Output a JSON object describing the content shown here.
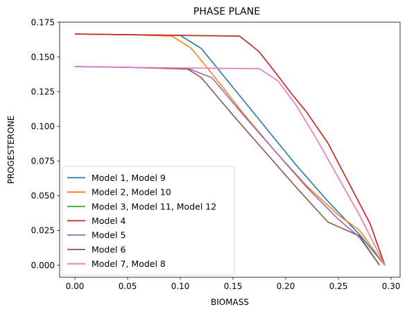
{
  "chart_data": {
    "type": "line",
    "title": "PHASE PLANE",
    "xlabel": "BIOMASS",
    "ylabel": "PROGESTERONE",
    "xlim": [
      -0.0145,
      0.3085
    ],
    "ylim": [
      -0.00875,
      0.175
    ],
    "xticks": [
      0.0,
      0.05,
      0.1,
      0.15,
      0.2,
      0.25,
      0.3
    ],
    "xtick_labels": [
      "0.00",
      "0.05",
      "0.10",
      "0.15",
      "0.20",
      "0.25",
      "0.30"
    ],
    "yticks": [
      0.0,
      0.025,
      0.05,
      0.075,
      0.1,
      0.125,
      0.15,
      0.175
    ],
    "ytick_labels": [
      "0.000",
      "0.025",
      "0.050",
      "0.075",
      "0.100",
      "0.125",
      "0.150",
      "0.175"
    ],
    "grid": false,
    "legend_position": "lower-left",
    "series": [
      {
        "name": "Model 1, Model 9",
        "color": "#1f77b4",
        "x": [
          0.0,
          0.05,
          0.1,
          0.12,
          0.15,
          0.18,
          0.21,
          0.24,
          0.27,
          0.294
        ],
        "y": [
          0.1665,
          0.166,
          0.1655,
          0.156,
          0.128,
          0.1,
          0.072,
          0.046,
          0.022,
          0.0
        ]
      },
      {
        "name": "Model 2, Model 10",
        "color": "#ff7f0e",
        "x": [
          0.0,
          0.05,
          0.092,
          0.11,
          0.13,
          0.16,
          0.19,
          0.22,
          0.25,
          0.27,
          0.294
        ],
        "y": [
          0.1665,
          0.166,
          0.165,
          0.1565,
          0.138,
          0.109,
          0.082,
          0.057,
          0.036,
          0.025,
          0.0
        ]
      },
      {
        "name": "Model 3, Model 11, Model 12",
        "color": "#2ca02c",
        "x": [
          0.0,
          0.05,
          0.1,
          0.156,
          0.168,
          0.175,
          0.19,
          0.205,
          0.22,
          0.24,
          0.26,
          0.28,
          0.294
        ],
        "y": [
          0.1665,
          0.166,
          0.1655,
          0.165,
          0.158,
          0.1535,
          0.139,
          0.124,
          0.11,
          0.088,
          0.059,
          0.03,
          0.0
        ]
      },
      {
        "name": "Model 4",
        "color": "#d62728",
        "x": [
          0.0,
          0.05,
          0.1,
          0.156,
          0.168,
          0.175,
          0.19,
          0.205,
          0.22,
          0.24,
          0.26,
          0.28,
          0.294
        ],
        "y": [
          0.1665,
          0.166,
          0.1655,
          0.165,
          0.158,
          0.1535,
          0.139,
          0.124,
          0.11,
          0.088,
          0.059,
          0.03,
          0.0
        ]
      },
      {
        "name": "Model 5",
        "color": "#9467bd",
        "x": [
          0.0,
          0.05,
          0.108,
          0.13,
          0.16,
          0.19,
          0.22,
          0.25,
          0.27,
          0.289
        ],
        "y": [
          0.143,
          0.1425,
          0.1415,
          0.135,
          0.108,
          0.082,
          0.056,
          0.033,
          0.02,
          0.0
        ]
      },
      {
        "name": "Model 6",
        "color": "#8c564b",
        "x": [
          0.0,
          0.05,
          0.107,
          0.12,
          0.15,
          0.18,
          0.21,
          0.24,
          0.27,
          0.289
        ],
        "y": [
          0.143,
          0.1425,
          0.1412,
          0.135,
          0.108,
          0.082,
          0.056,
          0.031,
          0.021,
          0.0
        ]
      },
      {
        "name": "Model 7, Model 8",
        "color": "#e377c2",
        "x": [
          0.0,
          0.05,
          0.1,
          0.175,
          0.193,
          0.21,
          0.23,
          0.25,
          0.27,
          0.294
        ],
        "y": [
          0.143,
          0.1425,
          0.142,
          0.1415,
          0.1325,
          0.115,
          0.09,
          0.063,
          0.036,
          0.0
        ]
      }
    ]
  }
}
